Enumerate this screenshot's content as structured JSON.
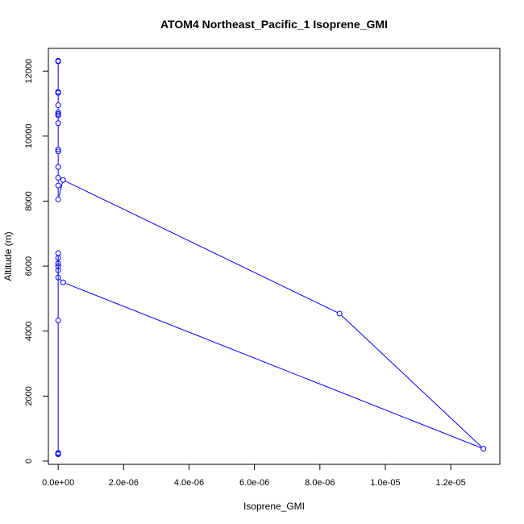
{
  "chart_data": {
    "type": "line",
    "title": "ATOM4 Northeast_Pacific_1 Isoprene_GMI",
    "xlabel": "Isoprene_GMI",
    "ylabel": "Altitude (m)",
    "xlim": [
      -3e-07,
      1.35e-05
    ],
    "ylim": [
      -100,
      12700
    ],
    "x_ticks": [
      0,
      2e-06,
      4e-06,
      6e-06,
      8e-06,
      1e-05,
      1.2e-05
    ],
    "x_tick_labels": [
      "0.0e+00",
      "2.0e-06",
      "4.0e-06",
      "6.0e-06",
      "8.0e-06",
      "1.0e-05",
      "1.2e-05"
    ],
    "y_ticks": [
      0,
      2000,
      4000,
      6000,
      8000,
      10000,
      12000
    ],
    "y_tick_labels": [
      "0",
      "2000",
      "4000",
      "6000",
      "8000",
      "10000",
      "12000"
    ],
    "grid": false,
    "series": [
      {
        "color": "#0000ff",
        "marker": "open-circle",
        "points": [
          {
            "x": 0,
            "y": 12320
          },
          {
            "x": 0,
            "y": 12300
          },
          {
            "x": 0,
            "y": 11360
          },
          {
            "x": 0,
            "y": 11330
          },
          {
            "x": 0,
            "y": 10950
          },
          {
            "x": 0,
            "y": 10730
          },
          {
            "x": 0,
            "y": 10680
          },
          {
            "x": 0,
            "y": 10640
          },
          {
            "x": 0,
            "y": 10400
          },
          {
            "x": 0,
            "y": 9590
          },
          {
            "x": 0,
            "y": 9530
          },
          {
            "x": 0,
            "y": 9050
          },
          {
            "x": 0,
            "y": 8720
          },
          {
            "x": 0,
            "y": 8480
          },
          {
            "x": 0,
            "y": 8050
          },
          {
            "x": 1.5e-07,
            "y": 8650
          },
          {
            "x": 8.6e-06,
            "y": 4540
          },
          {
            "x": 1.3e-05,
            "y": 380
          },
          {
            "x": 1.5e-07,
            "y": 5500
          },
          {
            "x": 0,
            "y": 5650
          },
          {
            "x": 0,
            "y": 5870
          },
          {
            "x": 0,
            "y": 6000
          },
          {
            "x": 0,
            "y": 6080
          },
          {
            "x": 0,
            "y": 6250
          },
          {
            "x": 0,
            "y": 6400
          },
          {
            "x": 0,
            "y": 4330
          },
          {
            "x": 0,
            "y": 250
          },
          {
            "x": 0,
            "y": 230
          },
          {
            "x": 0,
            "y": 210
          }
        ]
      }
    ]
  }
}
